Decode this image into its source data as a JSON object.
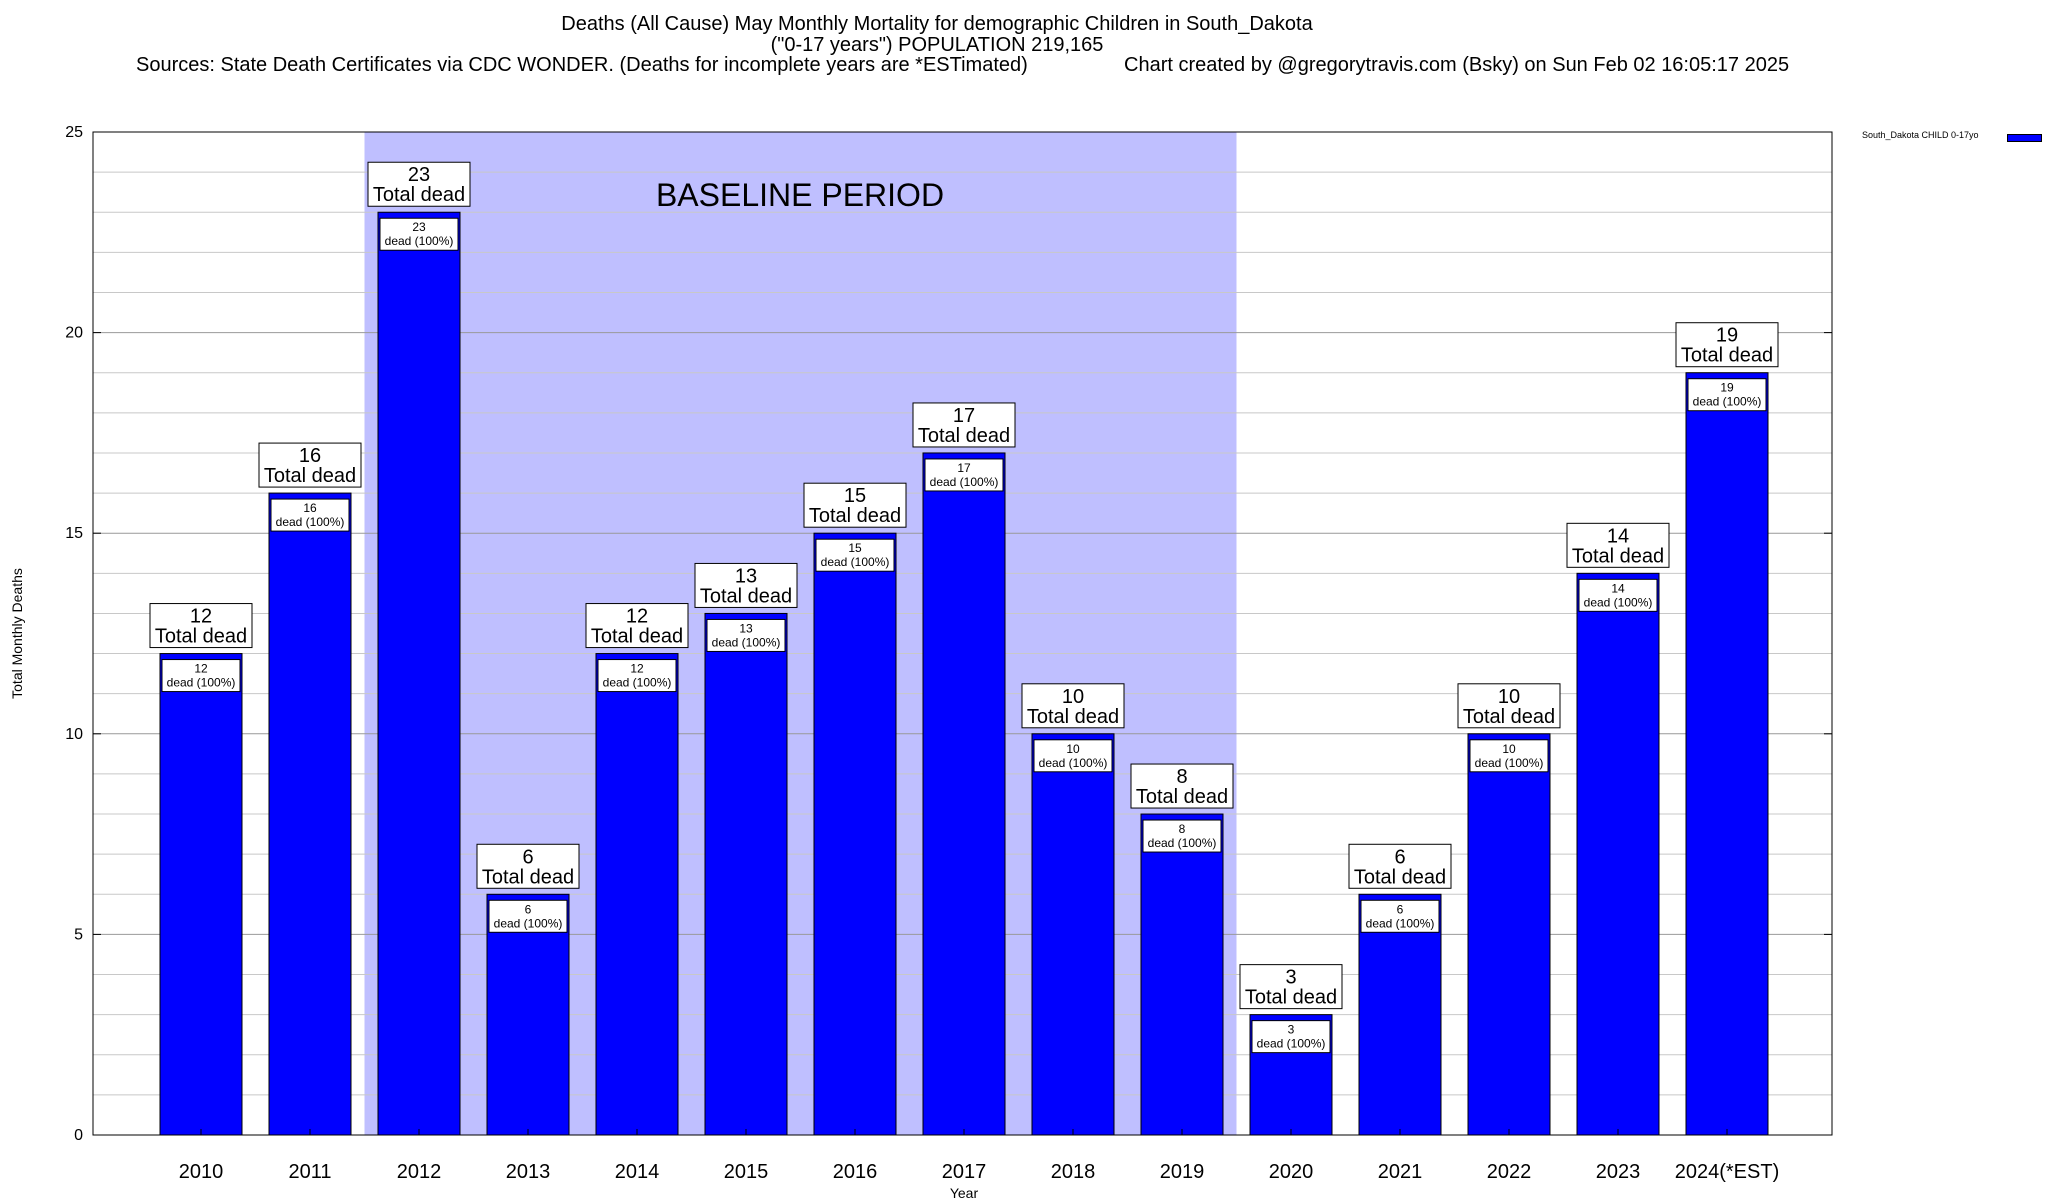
{
  "chart_data": {
    "type": "bar",
    "title_lines": [
      "Deaths (All Cause) May Monthly Mortality for demographic Children in South_Dakota",
      "(\"0-17 years\") POPULATION 219,165"
    ],
    "sources": "Sources: State Death Certificates via CDC WONDER. (Deaths for incomplete years are *ESTimated)",
    "credit": "Chart created by @gregorytravis.com (Bsky) on Sun Feb 02 16:05:17 2025",
    "xlabel": "Year",
    "ylabel": "Total Monthly Deaths",
    "ylim": [
      0,
      25
    ],
    "yticks": [
      0,
      5,
      10,
      15,
      20,
      25
    ],
    "grid": true,
    "categories": [
      "2010",
      "2011",
      "2012",
      "2013",
      "2014",
      "2015",
      "2016",
      "2017",
      "2018",
      "2019",
      "2020",
      "2021",
      "2022",
      "2023",
      "2024(*EST)"
    ],
    "series": [
      {
        "name": "South_Dakota CHILD 0-17yo",
        "color": "#0000ff",
        "values": [
          12,
          16,
          23,
          6,
          12,
          13,
          15,
          17,
          10,
          8,
          3,
          6,
          10,
          14,
          19
        ]
      }
    ],
    "top_label_suffix": "Total dead",
    "inner_label_suffix": "dead (100%)",
    "baseline_period": {
      "label": "BASELINE PERIOD",
      "from_category": "2012",
      "to_category": "2019",
      "color": "#bfbfff"
    },
    "legend_position": "top-right"
  }
}
